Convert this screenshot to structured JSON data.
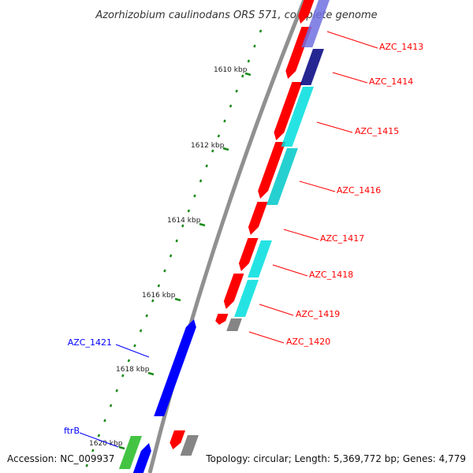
{
  "title": "Azorhizobium caulinodans ORS 571, complete genome",
  "footer": {
    "accession": "Accession: NC_009937",
    "topology": "Topology: circular; Length: 5,369,772 bp; Genes: 4,779"
  },
  "colors": {
    "forward_cds": "#ff0000",
    "reverse_cds": "#0000ff",
    "cog_cyan": "#00dede",
    "cog_navy": "#000080",
    "cog_violet": "#7070e0",
    "cog_green": "#22bb22",
    "cog_gray": "#707070",
    "backbone": "#909090",
    "ticks": "#1a8a1a",
    "label_forward": "#ff0000",
    "label_reverse": "#0000ff"
  },
  "kbp_ticks": [
    "1610 kbp",
    "1612 kbp",
    "1614 kbp",
    "1616 kbp",
    "1618 kbp",
    "1620 kbp"
  ],
  "gene_labels": [
    {
      "text": "AZC_1413",
      "strand": "forward"
    },
    {
      "text": "AZC_1414",
      "strand": "forward"
    },
    {
      "text": "AZC_1415",
      "strand": "forward"
    },
    {
      "text": "AZC_1416",
      "strand": "forward"
    },
    {
      "text": "AZC_1417",
      "strand": "forward"
    },
    {
      "text": "AZC_1418",
      "strand": "forward"
    },
    {
      "text": "AZC_1419",
      "strand": "forward"
    },
    {
      "text": "AZC_1420",
      "strand": "forward"
    },
    {
      "text": "AZC_1421",
      "strand": "reverse"
    },
    {
      "text": "ftrB",
      "strand": "reverse"
    }
  ]
}
